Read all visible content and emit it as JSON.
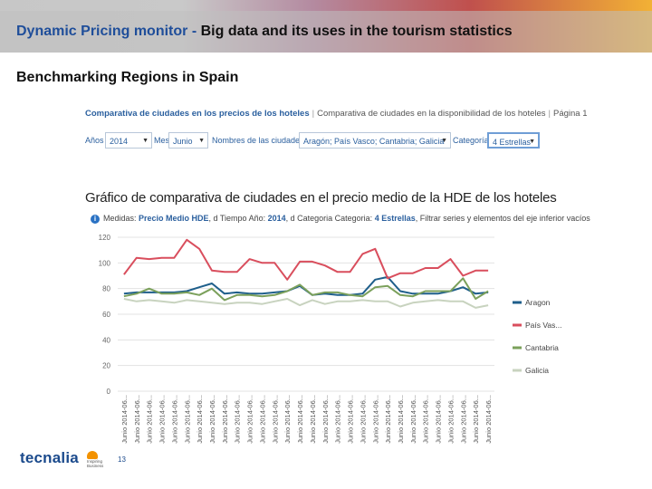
{
  "header": {
    "title_part1": "Dynamic Pricing monitor - ",
    "title_part2": "Big data and its uses in the tourism statistics"
  },
  "subtitle": "Benchmarking Regions in Spain",
  "screenshot": {
    "tabs": {
      "active": "Comparativa de ciudades en los precios de los hoteles",
      "other": "Comparativa de ciudades en la disponibilidad de los hoteles",
      "page": "Página 1"
    },
    "filters": {
      "year_label": "Años",
      "year_value": "2014",
      "month_label": "Mes",
      "month_value": "Junio",
      "cities_label": "Nombres de las ciudades",
      "cities_value": "Aragón; País Vasco; Cantabria; Galicia",
      "category_label": "Categoría",
      "category_value": "4 Estrellas"
    },
    "chart_title": "Gráfico de comparativa de ciudades en el precio medio de la HDE de los hoteles",
    "info": {
      "prefix": "Medidas: ",
      "measure": "Precio Medio HDE",
      "middle": ", d Tiempo Año: ",
      "year": "2014",
      "cat_text": ", d Categoria Categoria: ",
      "category": "4 Estrellas",
      "suffix": ", Filtrar series y elementos del eje inferior vacíos"
    }
  },
  "chart_data": {
    "type": "line",
    "title": "Gráfico de comparativa de ciudades en el precio medio de la HDE de los hoteles",
    "xlabel": "",
    "ylabel": "",
    "ylim": [
      0,
      120
    ],
    "yticks": [
      "0",
      "20",
      "40",
      "60",
      "80",
      "100",
      "120"
    ],
    "categories": [
      "Junio 2014-06...",
      "Junio 2014-06...",
      "Junio 2014-06...",
      "Junio 2014-06...",
      "Junio 2014-06...",
      "Junio 2014-06...",
      "Junio 2014-06...",
      "Junio 2014-06...",
      "Junio 2014-06...",
      "Junio 2014-06...",
      "Junio 2014-06...",
      "Junio 2014-06...",
      "Junio 2014-06...",
      "Junio 2014-06...",
      "Junio 2014-06...",
      "Junio 2014-06...",
      "Junio 2014-06...",
      "Junio 2014-06...",
      "Junio 2014-06...",
      "Junio 2014-06...",
      "Junio 2014-06...",
      "Junio 2014-06...",
      "Junio 2014-06...",
      "Junio 2014-06...",
      "Junio 2014-06...",
      "Junio 2014-06...",
      "Junio 2014-06...",
      "Junio 2014-06...",
      "Junio 2014-06...",
      "Junio 2014-06..."
    ],
    "series": [
      {
        "name": "Aragon",
        "color": "#1f5f8b",
        "values": [
          76,
          77,
          77,
          77,
          77,
          78,
          81,
          84,
          76,
          77,
          76,
          76,
          77,
          78,
          82,
          75,
          76,
          75,
          75,
          76,
          87,
          89,
          78,
          76,
          76,
          76,
          78,
          81,
          76,
          77
        ]
      },
      {
        "name": "País Vas...",
        "color": "#d94e5d",
        "values": [
          91,
          104,
          103,
          104,
          104,
          118,
          111,
          94,
          93,
          93,
          103,
          100,
          100,
          87,
          101,
          101,
          98,
          93,
          93,
          107,
          111,
          88,
          92,
          92,
          96,
          96,
          103,
          90,
          94,
          94
        ]
      },
      {
        "name": "Cantabria",
        "color": "#7ba05b",
        "values": [
          74,
          76,
          80,
          76,
          76,
          77,
          75,
          80,
          71,
          75,
          75,
          74,
          75,
          78,
          83,
          75,
          77,
          77,
          75,
          74,
          81,
          82,
          75,
          74,
          78,
          78,
          78,
          88,
          72,
          78
        ]
      },
      {
        "name": "Galicia",
        "color": "#c8d3bf",
        "values": [
          72,
          70,
          71,
          70,
          69,
          71,
          70,
          69,
          68,
          69,
          69,
          68,
          70,
          72,
          67,
          71,
          68,
          70,
          70,
          71,
          70,
          70,
          66,
          69,
          70,
          71,
          70,
          70,
          65,
          67
        ]
      }
    ],
    "legend_position": "right",
    "grid": true
  },
  "logo": {
    "brand": "tecnalia",
    "tagline": "Inspiring Business"
  },
  "page_number": "13"
}
